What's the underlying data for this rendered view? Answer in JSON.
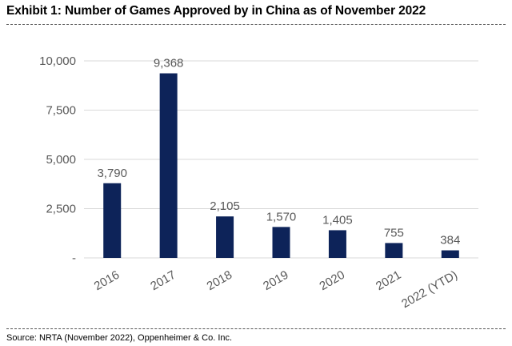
{
  "title": "Exhibit 1: Number of Games Approved by in China as of November 2022",
  "source": "Source: NRTA (November 2022), Oppenheimer & Co. Inc.",
  "colors": {
    "bar": "#0d2359",
    "grid": "#d9d9d9",
    "text": "#595959"
  },
  "chart_data": {
    "type": "bar",
    "title": "",
    "xlabel": "",
    "ylabel": "",
    "categories": [
      "2016",
      "2017",
      "2018",
      "2019",
      "2020",
      "2021",
      "2022 (YTD)"
    ],
    "values": [
      3790,
      9368,
      2105,
      1570,
      1405,
      755,
      384
    ],
    "data_labels": [
      "3,790",
      "9,368",
      "2,105",
      "1,570",
      "1,405",
      "755",
      "384"
    ],
    "ylim": [
      0,
      10000
    ],
    "yticks": [
      0,
      2500,
      5000,
      7500,
      10000
    ],
    "ytick_labels": [
      "-",
      "2,500",
      "5,000",
      "7,500",
      "10,000"
    ],
    "grid": true,
    "legend": "none"
  }
}
